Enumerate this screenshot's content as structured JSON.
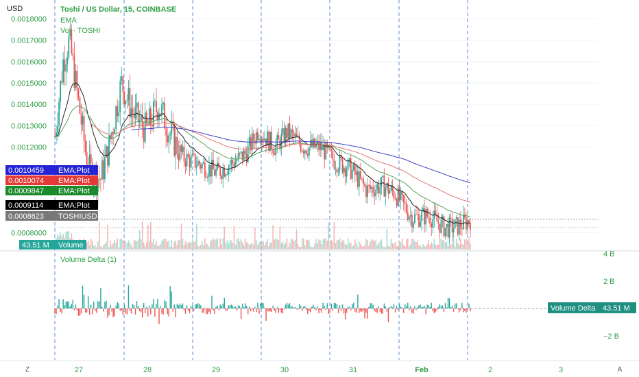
{
  "header": {
    "currency": "USD",
    "symbol_title": "Toshi / US Dollar, 15, COINBASE",
    "legend_ema": "EMA",
    "legend_vol": "Vol · TOSHI"
  },
  "price_axis": {
    "ticks": [
      "0.0018000",
      "0.0017000",
      "0.0016000",
      "0.0015000",
      "0.0014000",
      "0.0013000",
      "0.0012000",
      "0.0008000"
    ],
    "tick_values": [
      0.0018,
      0.0017,
      0.0016,
      0.0015,
      0.0014,
      0.0013,
      0.0012,
      0.0008
    ]
  },
  "price_tags": [
    {
      "text": "0.0010459",
      "label": "EMA:Plot",
      "value": 0.0010459,
      "color": "#2424d6"
    },
    {
      "text": "0.0010074",
      "label": "EMA:Plot",
      "value": 0.0010074,
      "color": "#e53935"
    },
    {
      "text": "0.0009847",
      "label": "EMA:Plot",
      "value": 0.0009847,
      "color": "#1b8a2a"
    },
    {
      "text": "0.0009114",
      "label": "EMA:Plot",
      "value": 0.0009114,
      "color": "#000000"
    },
    {
      "text": "0.0008623",
      "label": "TOSHIUSD",
      "value": 0.0008623,
      "color": "#787878"
    }
  ],
  "volume_tag": {
    "value": "43.51 M",
    "label": "Volume"
  },
  "delta_panel": {
    "title": "Volume Delta (1)",
    "ticks": [
      "4 B",
      "2 B",
      "−2 B"
    ],
    "tick_values": [
      4,
      2,
      -2
    ],
    "tag_label": "Volume Delta",
    "tag_value": "43.51 M"
  },
  "time_axis": {
    "left_button": "Z",
    "right_button": "A",
    "labels": [
      "27",
      "28",
      "29",
      "30",
      "31",
      "Feb",
      "2",
      "3"
    ]
  },
  "colors": {
    "up": "#26a69a",
    "down": "#ef5350",
    "ema_black": "#222222",
    "ema_red": "#e57373",
    "ema_green": "#5aa05a",
    "ema_blue": "#3f3fc8",
    "grid": "#f0f3fa",
    "divider": "#5b8bd6"
  },
  "chart_data": {
    "type": "candlestick",
    "title": "Toshi / US Dollar, 15, COINBASE",
    "ylabel": "USD",
    "ylim": [
      0.00075,
      0.00183
    ],
    "x_labels": [
      "27",
      "28",
      "29",
      "30",
      "31",
      "Feb",
      "2",
      "3"
    ],
    "price_path_approx": [
      {
        "t": 0.0,
        "p": 0.00125
      },
      {
        "t": 0.02,
        "p": 0.0016
      },
      {
        "t": 0.035,
        "p": 0.0017
      },
      {
        "t": 0.05,
        "p": 0.0015
      },
      {
        "t": 0.08,
        "p": 0.0011
      },
      {
        "t": 0.11,
        "p": 0.00105
      },
      {
        "t": 0.13,
        "p": 0.0012
      },
      {
        "t": 0.16,
        "p": 0.0015
      },
      {
        "t": 0.19,
        "p": 0.00135
      },
      {
        "t": 0.22,
        "p": 0.00128
      },
      {
        "t": 0.25,
        "p": 0.0014
      },
      {
        "t": 0.28,
        "p": 0.00125
      },
      {
        "t": 0.31,
        "p": 0.00115
      },
      {
        "t": 0.35,
        "p": 0.00112
      },
      {
        "t": 0.39,
        "p": 0.00108
      },
      {
        "t": 0.43,
        "p": 0.00113
      },
      {
        "t": 0.46,
        "p": 0.00117
      },
      {
        "t": 0.49,
        "p": 0.00128
      },
      {
        "t": 0.53,
        "p": 0.0012
      },
      {
        "t": 0.56,
        "p": 0.00127
      },
      {
        "t": 0.6,
        "p": 0.0012
      },
      {
        "t": 0.64,
        "p": 0.0012
      },
      {
        "t": 0.67,
        "p": 0.00114
      },
      {
        "t": 0.71,
        "p": 0.0011
      },
      {
        "t": 0.75,
        "p": 0.001
      },
      {
        "t": 0.79,
        "p": 0.00102
      },
      {
        "t": 0.82,
        "p": 0.00098
      },
      {
        "t": 0.86,
        "p": 0.00087
      },
      {
        "t": 0.9,
        "p": 0.00088
      },
      {
        "t": 0.94,
        "p": 0.00082
      },
      {
        "t": 0.97,
        "p": 0.00083
      },
      {
        "t": 1.0,
        "p": 0.00086
      }
    ],
    "current_price": 0.0008623,
    "ema_last": {
      "blue": 0.0010459,
      "red": 0.0010074,
      "green": 0.0009847,
      "black": 0.0009114
    },
    "volume_last": "43.51 M",
    "volume_delta_range_B": [
      -3,
      4.5
    ]
  }
}
